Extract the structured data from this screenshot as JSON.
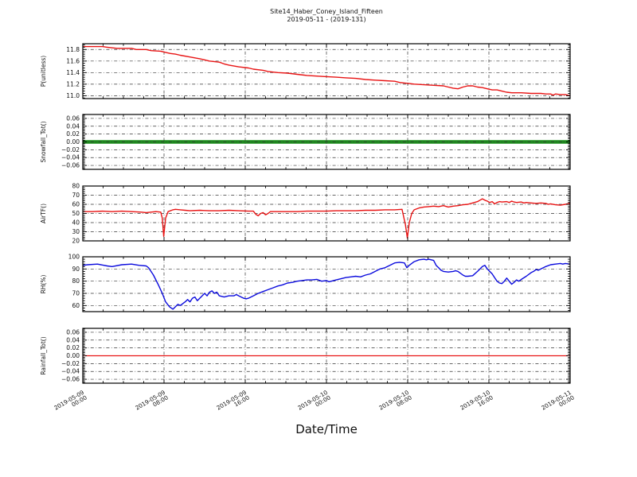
{
  "title": "Site14_Haber_Coney_Island_Fifteen",
  "subtitle": "2019-05-11 - (2019-131)",
  "xlabel": "Date/Time",
  "colors": {
    "red": "#e81414",
    "green": "#1e8c1e",
    "blue": "#0b0bdd",
    "grid": "#333333",
    "spine": "#000000"
  },
  "x_tick_labels": [
    {
      "date": "2019-05-09",
      "time": "00:00"
    },
    {
      "date": "2019-05-09",
      "time": "08:00"
    },
    {
      "date": "2019-05-09",
      "time": "16:00"
    },
    {
      "date": "2019-05-10",
      "time": "00:00"
    },
    {
      "date": "2019-05-10",
      "time": "08:00"
    },
    {
      "date": "2019-05-10",
      "time": "16:00"
    },
    {
      "date": "2019-05-11",
      "time": "00:00"
    }
  ],
  "chart_data": [
    {
      "type": "line",
      "ylabel": "P(unitless)",
      "color": "#e81414",
      "line_width": 1.4,
      "ylim": [
        10.95,
        11.9
      ],
      "yticks": [
        11.0,
        11.2,
        11.4,
        11.6,
        11.8
      ],
      "ytick_labels": [
        "11.0",
        "11.2",
        "11.4",
        "11.6",
        "11.8"
      ],
      "grid_over_line": false,
      "points": [
        [
          0,
          11.85
        ],
        [
          0.04,
          11.85
        ],
        [
          0.05,
          11.84
        ],
        [
          0.07,
          11.82
        ],
        [
          0.1,
          11.82
        ],
        [
          0.11,
          11.8
        ],
        [
          0.13,
          11.8
        ],
        [
          0.14,
          11.78
        ],
        [
          0.16,
          11.77
        ],
        [
          0.17,
          11.75
        ],
        [
          0.18,
          11.73
        ],
        [
          0.19,
          11.72
        ],
        [
          0.2,
          11.7
        ],
        [
          0.22,
          11.67
        ],
        [
          0.24,
          11.64
        ],
        [
          0.25,
          11.62
        ],
        [
          0.26,
          11.6
        ],
        [
          0.28,
          11.58
        ],
        [
          0.29,
          11.55
        ],
        [
          0.3,
          11.53
        ],
        [
          0.32,
          11.5
        ],
        [
          0.34,
          11.48
        ],
        [
          0.35,
          11.46
        ],
        [
          0.37,
          11.44
        ],
        [
          0.38,
          11.42
        ],
        [
          0.4,
          11.4
        ],
        [
          0.42,
          11.39
        ],
        [
          0.44,
          11.37
        ],
        [
          0.46,
          11.35
        ],
        [
          0.48,
          11.34
        ],
        [
          0.5,
          11.33
        ],
        [
          0.52,
          11.32
        ],
        [
          0.54,
          11.31
        ],
        [
          0.56,
          11.3
        ],
        [
          0.58,
          11.28
        ],
        [
          0.6,
          11.27
        ],
        [
          0.62,
          11.26
        ],
        [
          0.64,
          11.25
        ],
        [
          0.65,
          11.23
        ],
        [
          0.67,
          11.21
        ],
        [
          0.68,
          11.2
        ],
        [
          0.7,
          11.19
        ],
        [
          0.72,
          11.18
        ],
        [
          0.74,
          11.17
        ],
        [
          0.75,
          11.15
        ],
        [
          0.76,
          11.13
        ],
        [
          0.77,
          11.12
        ],
        [
          0.78,
          11.15
        ],
        [
          0.79,
          11.17
        ],
        [
          0.8,
          11.17
        ],
        [
          0.81,
          11.15
        ],
        [
          0.82,
          11.14
        ],
        [
          0.83,
          11.12
        ],
        [
          0.84,
          11.1
        ],
        [
          0.85,
          11.1
        ],
        [
          0.86,
          11.08
        ],
        [
          0.87,
          11.06
        ],
        [
          0.88,
          11.05
        ],
        [
          0.9,
          11.05
        ],
        [
          0.92,
          11.04
        ],
        [
          0.94,
          11.04
        ],
        [
          0.95,
          11.03
        ],
        [
          0.96,
          11.03
        ],
        [
          0.965,
          11.01
        ],
        [
          0.97,
          11.03
        ],
        [
          0.98,
          11.02
        ],
        [
          0.99,
          11.02
        ],
        [
          1.0,
          11.0
        ]
      ]
    },
    {
      "type": "line",
      "ylabel": "Snowfall_Tot()",
      "color": "#1e8c1e",
      "line_width": 4.5,
      "ylim": [
        -0.07,
        0.07
      ],
      "yticks": [
        -0.06,
        -0.04,
        -0.02,
        0.0,
        0.02,
        0.04,
        0.06
      ],
      "ytick_labels": [
        "−0.06",
        "−0.04",
        "−0.02",
        "0.00",
        "0.02",
        "0.04",
        "0.06"
      ],
      "grid_over_line": true,
      "points": [
        [
          0,
          0
        ],
        [
          1,
          0
        ]
      ]
    },
    {
      "type": "line",
      "ylabel": "AirTF()",
      "color": "#e81414",
      "line_width": 1.4,
      "ylim": [
        20,
        80
      ],
      "yticks": [
        20,
        30,
        40,
        50,
        60,
        70,
        80
      ],
      "ytick_labels": [
        "20",
        "30",
        "40",
        "50",
        "60",
        "70",
        "80"
      ],
      "grid_over_line": false,
      "points": [
        [
          0,
          52
        ],
        [
          0.02,
          52
        ],
        [
          0.04,
          52.5
        ],
        [
          0.06,
          52
        ],
        [
          0.08,
          52.5
        ],
        [
          0.1,
          52
        ],
        [
          0.12,
          51.5
        ],
        [
          0.13,
          51
        ],
        [
          0.14,
          51.5
        ],
        [
          0.15,
          52
        ],
        [
          0.16,
          51.5
        ],
        [
          0.163,
          45
        ],
        [
          0.166,
          25
        ],
        [
          0.17,
          45
        ],
        [
          0.175,
          52
        ],
        [
          0.185,
          54
        ],
        [
          0.19,
          54.5
        ],
        [
          0.2,
          54
        ],
        [
          0.21,
          53.5
        ],
        [
          0.22,
          53
        ],
        [
          0.24,
          53.5
        ],
        [
          0.26,
          53
        ],
        [
          0.28,
          53
        ],
        [
          0.3,
          53.5
        ],
        [
          0.32,
          53
        ],
        [
          0.34,
          52.5
        ],
        [
          0.35,
          52.5
        ],
        [
          0.355,
          49
        ],
        [
          0.36,
          47.5
        ],
        [
          0.365,
          50
        ],
        [
          0.37,
          51
        ],
        [
          0.375,
          48.5
        ],
        [
          0.38,
          50
        ],
        [
          0.385,
          52
        ],
        [
          0.4,
          52
        ],
        [
          0.42,
          52
        ],
        [
          0.44,
          52
        ],
        [
          0.46,
          52.5
        ],
        [
          0.48,
          52.5
        ],
        [
          0.5,
          52.5
        ],
        [
          0.52,
          53
        ],
        [
          0.54,
          53
        ],
        [
          0.56,
          53
        ],
        [
          0.58,
          53.5
        ],
        [
          0.6,
          53.5
        ],
        [
          0.62,
          54
        ],
        [
          0.64,
          54
        ],
        [
          0.655,
          54.5
        ],
        [
          0.662,
          38
        ],
        [
          0.666,
          23
        ],
        [
          0.67,
          40
        ],
        [
          0.675,
          50
        ],
        [
          0.68,
          54
        ],
        [
          0.69,
          56
        ],
        [
          0.7,
          57
        ],
        [
          0.71,
          57.5
        ],
        [
          0.72,
          58
        ],
        [
          0.73,
          57.5
        ],
        [
          0.74,
          58.5
        ],
        [
          0.75,
          57
        ],
        [
          0.76,
          58
        ],
        [
          0.77,
          58.5
        ],
        [
          0.78,
          59.5
        ],
        [
          0.79,
          60
        ],
        [
          0.8,
          61.5
        ],
        [
          0.81,
          63
        ],
        [
          0.815,
          64.5
        ],
        [
          0.82,
          66
        ],
        [
          0.825,
          64.5
        ],
        [
          0.83,
          63.5
        ],
        [
          0.835,
          62
        ],
        [
          0.84,
          63
        ],
        [
          0.845,
          60.5
        ],
        [
          0.85,
          62
        ],
        [
          0.855,
          63
        ],
        [
          0.86,
          62.5
        ],
        [
          0.87,
          63
        ],
        [
          0.875,
          62
        ],
        [
          0.88,
          63.5
        ],
        [
          0.885,
          62.5
        ],
        [
          0.89,
          62
        ],
        [
          0.9,
          62.5
        ],
        [
          0.905,
          61.5
        ],
        [
          0.91,
          62
        ],
        [
          0.92,
          61.5
        ],
        [
          0.93,
          61
        ],
        [
          0.94,
          61.5
        ],
        [
          0.95,
          61
        ],
        [
          0.955,
          60
        ],
        [
          0.96,
          60.5
        ],
        [
          0.97,
          59.5
        ],
        [
          0.98,
          59
        ],
        [
          0.99,
          60
        ],
        [
          1.0,
          61
        ]
      ]
    },
    {
      "type": "line",
      "ylabel": "RH(%)",
      "color": "#0b0bdd",
      "line_width": 1.4,
      "ylim": [
        55,
        100
      ],
      "yticks": [
        60,
        70,
        80,
        90,
        100
      ],
      "ytick_labels": [
        "60",
        "70",
        "80",
        "90",
        "100"
      ],
      "grid_over_line": false,
      "points": [
        [
          0,
          93
        ],
        [
          0.01,
          93.5
        ],
        [
          0.03,
          94
        ],
        [
          0.05,
          92.5
        ],
        [
          0.06,
          92
        ],
        [
          0.08,
          93.5
        ],
        [
          0.1,
          94
        ],
        [
          0.115,
          93
        ],
        [
          0.13,
          92.5
        ],
        [
          0.135,
          91
        ],
        [
          0.145,
          85
        ],
        [
          0.155,
          77
        ],
        [
          0.163,
          70
        ],
        [
          0.17,
          63
        ],
        [
          0.178,
          59
        ],
        [
          0.185,
          57
        ],
        [
          0.19,
          59
        ],
        [
          0.195,
          61
        ],
        [
          0.2,
          60
        ],
        [
          0.21,
          63
        ],
        [
          0.215,
          65
        ],
        [
          0.22,
          63
        ],
        [
          0.225,
          66
        ],
        [
          0.23,
          67
        ],
        [
          0.235,
          64
        ],
        [
          0.24,
          66
        ],
        [
          0.25,
          70
        ],
        [
          0.255,
          68
        ],
        [
          0.26,
          71
        ],
        [
          0.265,
          72
        ],
        [
          0.27,
          70
        ],
        [
          0.275,
          71
        ],
        [
          0.28,
          68
        ],
        [
          0.29,
          67
        ],
        [
          0.3,
          68
        ],
        [
          0.31,
          68
        ],
        [
          0.315,
          69
        ],
        [
          0.32,
          68
        ],
        [
          0.33,
          66
        ],
        [
          0.335,
          65.5
        ],
        [
          0.34,
          66
        ],
        [
          0.35,
          68
        ],
        [
          0.36,
          70
        ],
        [
          0.37,
          71.5
        ],
        [
          0.38,
          73
        ],
        [
          0.39,
          74.5
        ],
        [
          0.4,
          76
        ],
        [
          0.41,
          77
        ],
        [
          0.42,
          78.5
        ],
        [
          0.43,
          79
        ],
        [
          0.44,
          80
        ],
        [
          0.45,
          80.5
        ],
        [
          0.46,
          81
        ],
        [
          0.47,
          81
        ],
        [
          0.48,
          81.5
        ],
        [
          0.49,
          80
        ],
        [
          0.5,
          80.5
        ],
        [
          0.505,
          79.5
        ],
        [
          0.51,
          80
        ],
        [
          0.52,
          81
        ],
        [
          0.53,
          82
        ],
        [
          0.54,
          83
        ],
        [
          0.55,
          83.5
        ],
        [
          0.56,
          84
        ],
        [
          0.57,
          83.5
        ],
        [
          0.58,
          85
        ],
        [
          0.59,
          86
        ],
        [
          0.6,
          88
        ],
        [
          0.61,
          90
        ],
        [
          0.62,
          91
        ],
        [
          0.63,
          93
        ],
        [
          0.64,
          95
        ],
        [
          0.65,
          95.5
        ],
        [
          0.66,
          95
        ],
        [
          0.665,
          91
        ],
        [
          0.67,
          93
        ],
        [
          0.68,
          96
        ],
        [
          0.69,
          97.5
        ],
        [
          0.7,
          98
        ],
        [
          0.705,
          97.5
        ],
        [
          0.71,
          98
        ],
        [
          0.72,
          97
        ],
        [
          0.725,
          93
        ],
        [
          0.73,
          91
        ],
        [
          0.735,
          89
        ],
        [
          0.74,
          88
        ],
        [
          0.75,
          87.5
        ],
        [
          0.76,
          88
        ],
        [
          0.765,
          88.5
        ],
        [
          0.77,
          88
        ],
        [
          0.78,
          85
        ],
        [
          0.785,
          84
        ],
        [
          0.79,
          84
        ],
        [
          0.8,
          84.5
        ],
        [
          0.81,
          88
        ],
        [
          0.82,
          92
        ],
        [
          0.825,
          93
        ],
        [
          0.83,
          90
        ],
        [
          0.84,
          86
        ],
        [
          0.845,
          83
        ],
        [
          0.85,
          80
        ],
        [
          0.855,
          78.5
        ],
        [
          0.86,
          78
        ],
        [
          0.865,
          80
        ],
        [
          0.87,
          82.5
        ],
        [
          0.875,
          80
        ],
        [
          0.88,
          77.5
        ],
        [
          0.885,
          79
        ],
        [
          0.89,
          81
        ],
        [
          0.895,
          80
        ],
        [
          0.9,
          81.5
        ],
        [
          0.91,
          84
        ],
        [
          0.92,
          87
        ],
        [
          0.925,
          88
        ],
        [
          0.93,
          89.5
        ],
        [
          0.935,
          89
        ],
        [
          0.94,
          90
        ],
        [
          0.95,
          92
        ],
        [
          0.96,
          93.5
        ],
        [
          0.97,
          94
        ],
        [
          0.98,
          94.5
        ],
        [
          0.985,
          94
        ],
        [
          0.99,
          94.5
        ],
        [
          1.0,
          94
        ]
      ]
    },
    {
      "type": "line",
      "ylabel": "Rainfall_Tot()",
      "color": "#e81414",
      "line_width": 1.3,
      "ylim": [
        -0.07,
        0.07
      ],
      "yticks": [
        -0.06,
        -0.04,
        -0.02,
        0.0,
        0.02,
        0.04,
        0.06
      ],
      "ytick_labels": [
        "−0.06",
        "−0.04",
        "−0.02",
        "0.00",
        "0.02",
        "0.04",
        "0.06"
      ],
      "grid_over_line": false,
      "points": [
        [
          0,
          0
        ],
        [
          1,
          0
        ]
      ]
    }
  ]
}
